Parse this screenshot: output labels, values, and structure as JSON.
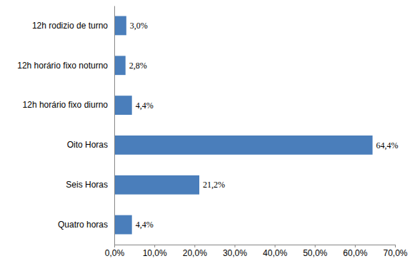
{
  "chart_data": {
    "type": "bar",
    "orientation": "horizontal",
    "categories": [
      "12h rodizio de turno",
      "12h horário fixo noturno",
      "12h horário fixo diurno",
      "Oito Horas",
      "Seis Horas",
      "Quatro horas"
    ],
    "values": [
      3.0,
      2.8,
      4.4,
      64.4,
      21.2,
      4.4
    ],
    "value_labels": [
      "3,0%",
      "2,8%",
      "4,4%",
      "64,4%",
      "21,2%",
      "4,4%"
    ],
    "color": "#4a7ebb",
    "xlim": [
      0,
      70
    ],
    "xticks": [
      {
        "value": 0,
        "label": "0,0%"
      },
      {
        "value": 10,
        "label": "10,0%"
      },
      {
        "value": 20,
        "label": "20,0%"
      },
      {
        "value": 30,
        "label": "30,0%"
      },
      {
        "value": 40,
        "label": "40,0%"
      },
      {
        "value": 50,
        "label": "50,0%"
      },
      {
        "value": 60,
        "label": "60,0%"
      },
      {
        "value": 70,
        "label": "70,0%"
      }
    ],
    "data_labels": true,
    "grid": false
  }
}
